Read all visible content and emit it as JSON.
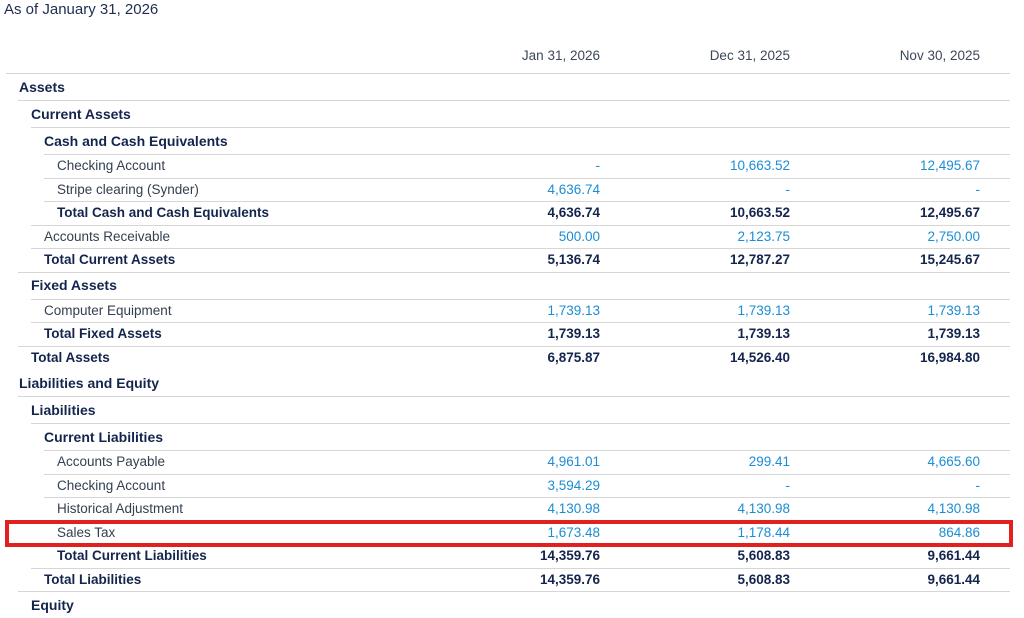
{
  "report": {
    "subtitle": "As of January 31, 2026",
    "columns": [
      "Jan 31, 2026",
      "Dec 31, 2025",
      "Nov 30, 2025"
    ],
    "rows": [
      {
        "label": "Assets",
        "indent": 1,
        "type": "section"
      },
      {
        "label": "Current Assets",
        "indent": 2,
        "type": "section"
      },
      {
        "label": "Cash and Cash Equivalents",
        "indent": 3,
        "type": "section"
      },
      {
        "label": "Checking Account",
        "indent": 4,
        "type": "data",
        "values": [
          "-",
          "10,663.52",
          "12,495.67"
        ]
      },
      {
        "label": "Stripe clearing (Synder)",
        "indent": 4,
        "type": "data",
        "values": [
          "4,636.74",
          "-",
          "-"
        ]
      },
      {
        "label": "Total Cash and Cash Equivalents",
        "indent": 4,
        "type": "total",
        "values": [
          "4,636.74",
          "10,663.52",
          "12,495.67"
        ]
      },
      {
        "label": "Accounts Receivable",
        "indent": 3,
        "type": "data",
        "values": [
          "500.00",
          "2,123.75",
          "2,750.00"
        ]
      },
      {
        "label": "Total Current Assets",
        "indent": 3,
        "type": "total",
        "values": [
          "5,136.74",
          "12,787.27",
          "15,245.67"
        ]
      },
      {
        "label": "Fixed Assets",
        "indent": 2,
        "type": "section"
      },
      {
        "label": "Computer Equipment",
        "indent": 3,
        "type": "data",
        "values": [
          "1,739.13",
          "1,739.13",
          "1,739.13"
        ]
      },
      {
        "label": "Total Fixed Assets",
        "indent": 3,
        "type": "total",
        "values": [
          "1,739.13",
          "1,739.13",
          "1,739.13"
        ]
      },
      {
        "label": "Total Assets",
        "indent": 2,
        "type": "total",
        "values": [
          "6,875.87",
          "14,526.40",
          "16,984.80"
        ]
      },
      {
        "label": "Liabilities and Equity",
        "indent": 1,
        "type": "section",
        "line": false
      },
      {
        "label": "Liabilities",
        "indent": 2,
        "type": "section"
      },
      {
        "label": "Current Liabilities",
        "indent": 3,
        "type": "section"
      },
      {
        "label": "Accounts Payable",
        "indent": 4,
        "type": "data",
        "values": [
          "4,961.01",
          "299.41",
          "4,665.60"
        ]
      },
      {
        "label": "Checking Account",
        "indent": 4,
        "type": "data",
        "values": [
          "3,594.29",
          "-",
          "-"
        ]
      },
      {
        "label": "Historical Adjustment",
        "indent": 4,
        "type": "data",
        "values": [
          "4,130.98",
          "4,130.98",
          "4,130.98"
        ]
      },
      {
        "label": "Sales Tax",
        "indent": 4,
        "type": "data",
        "values": [
          "1,673.48",
          "1,178.44",
          "864.86"
        ],
        "highlight": true
      },
      {
        "label": "Total Current Liabilities",
        "indent": 4,
        "type": "total",
        "values": [
          "14,359.76",
          "5,608.83",
          "9,661.44"
        ]
      },
      {
        "label": "Total Liabilities",
        "indent": 3,
        "type": "total",
        "values": [
          "14,359.76",
          "5,608.83",
          "9,661.44"
        ]
      },
      {
        "label": "Equity",
        "indent": 2,
        "type": "section"
      }
    ]
  },
  "colors": {
    "highlight_red": "#e0211f",
    "link_blue": "#1b8dd4",
    "heading_navy": "#14254d",
    "text_dark": "#33404f",
    "separator_gray": "#d6d6d6"
  }
}
